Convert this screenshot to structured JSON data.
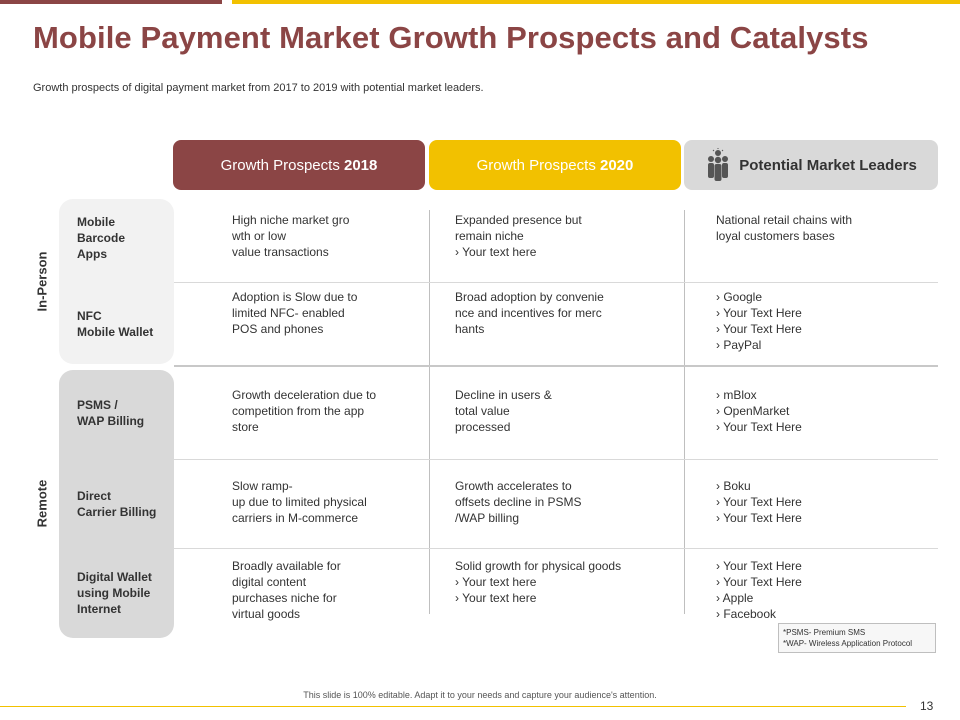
{
  "header": {
    "title": "Mobile Payment Market Growth Prospects and Catalysts",
    "subtitle": "Growth prospects of digital payment market from 2017 to 2019 with potential market leaders."
  },
  "columns": {
    "c2018_prefix": "Growth Prospects ",
    "c2018_year": "2018",
    "c2020_prefix": "Growth Prospects ",
    "c2020_year": "2020",
    "leaders": "Potential Market Leaders",
    "leaders_icon": "people-group-icon"
  },
  "groups": {
    "in_person": "In-Person",
    "remote": "Remote"
  },
  "rows": [
    {
      "label": [
        "Mobile",
        "Barcode",
        "Apps"
      ],
      "c2018": [
        "High niche market gro",
        "wth or low",
        "value transactions"
      ],
      "c2020": [
        "Expanded presence but",
        "remain niche",
        "›  Your text here"
      ],
      "leaders": [
        "National retail chains with",
        "loyal customers bases"
      ]
    },
    {
      "label": [
        "NFC",
        "Mobile Wallet"
      ],
      "c2018": [
        "Adoption is Slow due to",
        "limited NFC- enabled",
        "POS and phones"
      ],
      "c2020": [
        "Broad adoption by convenie",
        "nce and incentives for merc",
        "hants"
      ],
      "leaders": [
        "›  Google",
        "›  Your Text Here",
        "›  Your Text Here",
        "›  PayPal"
      ]
    },
    {
      "label": [
        "PSMS /",
        "WAP Billing"
      ],
      "c2018": [
        "Growth deceleration due to",
        "competition from the app",
        "store"
      ],
      "c2020": [
        "Decline in users &",
        "total value",
        "processed"
      ],
      "leaders": [
        "›  mBlox",
        "›  OpenMarket",
        "›  Your Text Here"
      ]
    },
    {
      "label": [
        "Direct",
        "Carrier Billing"
      ],
      "c2018": [
        "Slow ramp-",
        "up due to limited physical",
        "carriers in M-commerce"
      ],
      "c2020": [
        "Growth accelerates to",
        "offsets decline in PSMS",
        "/WAP billing"
      ],
      "leaders": [
        "›  Boku",
        "›  Your Text Here",
        "›  Your Text Here"
      ]
    },
    {
      "label": [
        "Digital Wallet",
        "using Mobile",
        "Internet"
      ],
      "c2018": [
        "Broadly available for",
        "digital content",
        "purchases niche for",
        "virtual goods"
      ],
      "c2020": [
        "Solid growth for physical goods",
        "›  Your text here",
        "›  Your text here"
      ],
      "leaders": [
        "›  Your Text Here",
        "›  Your Text Here",
        "›  Apple",
        "›  Facebook"
      ]
    }
  ],
  "footnote": [
    "*PSMS- Premium SMS",
    "*WAP- Wireless Application Protocol"
  ],
  "footer": {
    "text": "This slide is 100% editable. Adapt it to your needs and capture your audience's attention.",
    "page_number": "13"
  },
  "colors": {
    "maroon": "#8b4545",
    "gold": "#f2c100",
    "gray": "#d9d9d9"
  }
}
